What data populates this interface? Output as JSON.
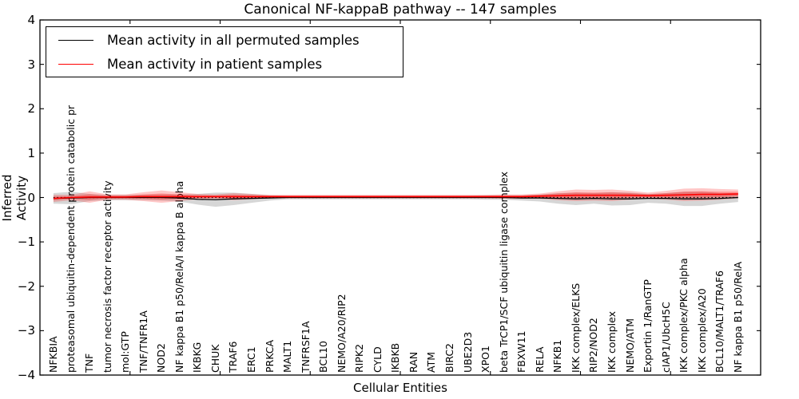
{
  "figure": {
    "title": "Canonical NF-kappaB pathway -- 147 samples",
    "background": "#ffffff",
    "frame_color": "#000000"
  },
  "legend": {
    "position": "upper left",
    "border_color": "#000000"
  },
  "chart_data": {
    "type": "line",
    "title": "Canonical NF-kappaB pathway -- 147 samples",
    "xlabel": "Cellular Entities",
    "ylabel": "Inferred Activity",
    "ylim": [
      -4,
      4
    ],
    "yticks": [
      -4,
      -3,
      -2,
      -1,
      0,
      1,
      2,
      3,
      4
    ],
    "xlim": [
      0,
      40
    ],
    "xticks": [
      5,
      10,
      15,
      20,
      25,
      30,
      35
    ],
    "grid": false,
    "zero_line": {
      "value": 0,
      "style": "dotted",
      "color": "#000000"
    },
    "legend_position": "upper left",
    "categories": [
      "NFKBIA",
      "proteasomal ubiquitin-dependent protein catabolic pr",
      "TNF",
      "tumor necrosis factor receptor activity",
      "mol:GTP",
      "TNF/TNFR1A",
      "NOD2",
      "NF kappa B1 p50/RelA/I kappa B alpha",
      "IKBKG",
      "CHUK",
      "TRAF6",
      "ERC1",
      "PRKCA",
      "MALT1",
      "TNFRSF1A",
      "BCL10",
      "NEMO/A20/RIP2",
      "RIPK2",
      "CYLD",
      "IKBKB",
      "RAN",
      "ATM",
      "BIRC2",
      "UBE2D3",
      "XPO1",
      "beta TrCP1/SCF ubiquitin ligase complex",
      "FBXW11",
      "RELA",
      "NFKB1",
      "IKK complex/ELKS",
      "RIP2/NOD2",
      "IKK complex",
      "NEMO/ATM",
      "Exportin 1/RanGTP",
      "cIAP1/UbcH5C",
      "IKK complex/PKC alpha",
      "IKK complex/A20",
      "BCL10/MALT1/TRAF6",
      "NF kappa B1 p50/RelA"
    ],
    "series": [
      {
        "name": "Mean activity in all permuted samples",
        "color": "#000000",
        "band_color": "#000000",
        "band_opacity": 0.16,
        "values": [
          -0.02,
          -0.01,
          0,
          0,
          0,
          0,
          0,
          -0.01,
          -0.04,
          -0.05,
          -0.03,
          -0.02,
          -0.01,
          0,
          0,
          0,
          0,
          0,
          0,
          0,
          0,
          0,
          0,
          0,
          0,
          0,
          -0.01,
          -0.01,
          -0.02,
          -0.03,
          -0.02,
          -0.03,
          -0.03,
          -0.02,
          -0.02,
          -0.03,
          -0.03,
          -0.02,
          0
        ],
        "band": [
          0.12,
          0.14,
          0.08,
          0.06,
          0.06,
          0.06,
          0.07,
          0.08,
          0.12,
          0.16,
          0.14,
          0.1,
          0.06,
          0.04,
          0.04,
          0.04,
          0.04,
          0.04,
          0.04,
          0.04,
          0.04,
          0.04,
          0.04,
          0.04,
          0.05,
          0.05,
          0.06,
          0.08,
          0.12,
          0.14,
          0.12,
          0.15,
          0.14,
          0.1,
          0.12,
          0.16,
          0.16,
          0.12,
          0.1
        ]
      },
      {
        "name": "Mean activity in patient samples",
        "color": "#ff0000",
        "band_color": "#ff0000",
        "band_opacity": 0.22,
        "values": [
          -0.02,
          0,
          0.01,
          0.01,
          0.01,
          0.02,
          0.02,
          0.02,
          0.02,
          0.02,
          0.02,
          0.02,
          0.02,
          0.02,
          0.02,
          0.02,
          0.02,
          0.02,
          0.02,
          0.02,
          0.02,
          0.02,
          0.02,
          0.02,
          0.02,
          0.02,
          0.02,
          0.03,
          0.04,
          0.05,
          0.05,
          0.05,
          0.05,
          0.04,
          0.05,
          0.06,
          0.07,
          0.07,
          0.08
        ],
        "band": [
          0.08,
          0.06,
          0.13,
          0.06,
          0.06,
          0.1,
          0.14,
          0.1,
          0.06,
          0.05,
          0.08,
          0.06,
          0.04,
          0.04,
          0.04,
          0.04,
          0.04,
          0.04,
          0.04,
          0.04,
          0.04,
          0.04,
          0.04,
          0.04,
          0.04,
          0.05,
          0.05,
          0.06,
          0.1,
          0.13,
          0.12,
          0.13,
          0.1,
          0.07,
          0.1,
          0.14,
          0.14,
          0.12,
          0.1
        ]
      }
    ]
  }
}
